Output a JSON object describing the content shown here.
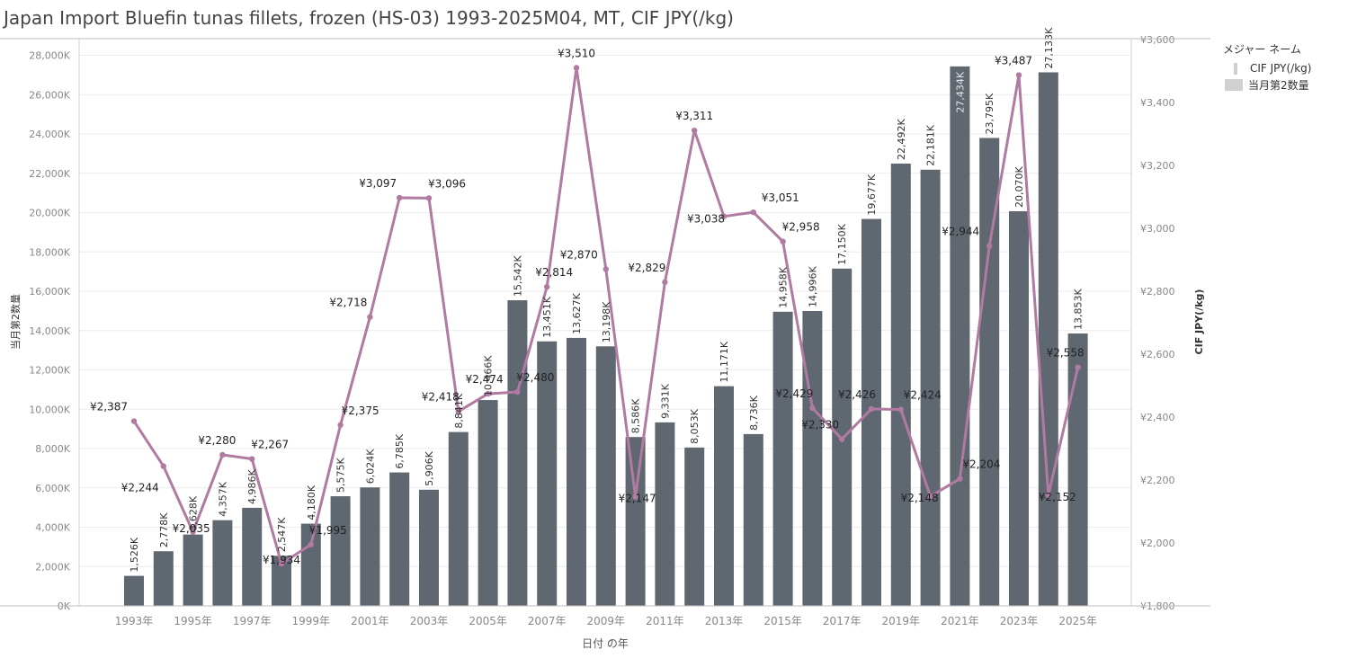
{
  "title": "Japan Import Bluefin tunas fillets, frozen (HS-03) 1993-2025M04, MT, CIF JPY(/kg)",
  "legend": {
    "title": "メジャー ネーム",
    "items": [
      {
        "label": "CIF JPY(/kg)",
        "shape": "line",
        "color": "#d0d0d0"
      },
      {
        "label": "当月第2数量",
        "shape": "bar",
        "color": "#d0d0d0"
      }
    ]
  },
  "colors": {
    "bar": "#5f6770",
    "line": "#b07aa1",
    "grid": "#ececec",
    "axis_text": "#888888"
  },
  "chart_data": {
    "type": "bar+line",
    "xlabel": "日付 の年",
    "ylabel_left": "当月第2数量",
    "ylabel_right": "CIF JPY(/kg)",
    "ylim_left": [
      0,
      28800
    ],
    "ylim_right": [
      1800,
      3600
    ],
    "left_ticks": [
      "0K",
      "2,000K",
      "4,000K",
      "6,000K",
      "8,000K",
      "10,000K",
      "12,000K",
      "14,000K",
      "16,000K",
      "18,000K",
      "20,000K",
      "22,000K",
      "24,000K",
      "26,000K",
      "28,000K"
    ],
    "right_ticks": [
      "¥1,800",
      "¥2,000",
      "¥2,200",
      "¥2,400",
      "¥2,600",
      "¥2,800",
      "¥3,000",
      "¥3,200",
      "¥3,400",
      "¥3,600"
    ],
    "x_tick_labels": [
      "1993年",
      "1995年",
      "1997年",
      "1999年",
      "2001年",
      "2003年",
      "2005年",
      "2007年",
      "2009年",
      "2011年",
      "2013年",
      "2015年",
      "2017年",
      "2019年",
      "2021年",
      "2023年",
      "2025年"
    ],
    "x": [
      1993,
      1994,
      1995,
      1996,
      1997,
      1998,
      1999,
      2000,
      2001,
      2002,
      2003,
      2004,
      2005,
      2006,
      2007,
      2008,
      2009,
      2010,
      2011,
      2012,
      2013,
      2014,
      2015,
      2016,
      2017,
      2018,
      2019,
      2020,
      2021,
      2022,
      2023,
      2024,
      2025
    ],
    "series": [
      {
        "name": "当月第2数量",
        "type": "bar",
        "values": [
          1526,
          2778,
          3628,
          4357,
          4986,
          2547,
          4180,
          5575,
          6024,
          6785,
          5906,
          8841,
          10466,
          15542,
          13451,
          13627,
          13198,
          8586,
          9331,
          8053,
          11171,
          8736,
          14958,
          14996,
          17150,
          19677,
          22492,
          22181,
          27434,
          23795,
          20070,
          27133,
          13853
        ],
        "labels": [
          "1,526K",
          "2,778K",
          "3,628K",
          "4,357K",
          "4,986K",
          "2,547K",
          "4,180K",
          "5,575K",
          "6,024K",
          "6,785K",
          "5,906K",
          "8,841K",
          "10,466K",
          "15,542K",
          "13,451K",
          "13,627K",
          "13,198K",
          "8,586K",
          "9,331K",
          "8,053K",
          "11,171K",
          "8,736K",
          "14,958K",
          "14,996K",
          "17,150K",
          "19,677K",
          "22,492K",
          "22,181K",
          "27,434K",
          "23,795K",
          "20,070K",
          "27,133K",
          "13,853K"
        ]
      },
      {
        "name": "CIF JPY(/kg)",
        "type": "line",
        "values": [
          2387,
          2244,
          2035,
          2280,
          2267,
          1934,
          1995,
          2375,
          2718,
          3097,
          3096,
          2418,
          2474,
          2480,
          2814,
          3510,
          2870,
          2147,
          2829,
          3311,
          3038,
          3051,
          2958,
          2429,
          2330,
          2426,
          2424,
          2148,
          2204,
          2944,
          3487,
          2152,
          2558
        ],
        "labels": [
          "¥2,387",
          "¥2,244",
          "¥2,035",
          "¥2,280",
          "¥2,267",
          "¥1,934",
          "¥1,995",
          "¥2,375",
          "¥2,718",
          "¥3,097",
          "¥3,096",
          "¥2,418",
          "¥2,474",
          "¥2,480",
          "¥2,814",
          "¥3,510",
          "¥2,870",
          "¥2,147",
          "¥2,829",
          "¥3,311",
          "¥3,038",
          "¥3,051",
          "¥2,958",
          "¥2,429",
          "¥2,330",
          "¥2,426",
          "¥2,424",
          "¥2,148",
          "¥2,204",
          "¥2,944",
          "¥3,487",
          "¥2,152",
          "¥2,558"
        ]
      }
    ]
  }
}
